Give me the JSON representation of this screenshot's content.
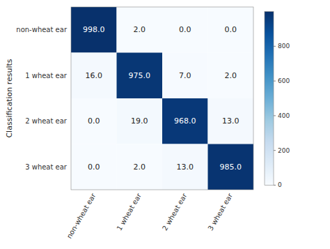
{
  "chart_data": {
    "type": "heatmap",
    "categories": [
      "non-wheat ear",
      "1 wheat ear",
      "2 wheat ear",
      "3 wheat ear"
    ],
    "ylabel": "Classification results",
    "values": [
      [
        998.0,
        2.0,
        0.0,
        0.0
      ],
      [
        16.0,
        975.0,
        7.0,
        2.0
      ],
      [
        0.0,
        19.0,
        968.0,
        13.0
      ],
      [
        0.0,
        2.0,
        13.0,
        985.0
      ]
    ],
    "value_labels": [
      [
        "998.0",
        "2.0",
        "0.0",
        "0.0"
      ],
      [
        "16.0",
        "975.0",
        "7.0",
        "2.0"
      ],
      [
        "0.0",
        "19.0",
        "968.0",
        "13.0"
      ],
      [
        "0.0",
        "2.0",
        "13.0",
        "985.0"
      ]
    ],
    "data_labels": true,
    "color": "Blues",
    "colorbar_range": [
      0,
      1000
    ],
    "colorbar_ticks": [
      0,
      200,
      400,
      600,
      800
    ]
  }
}
